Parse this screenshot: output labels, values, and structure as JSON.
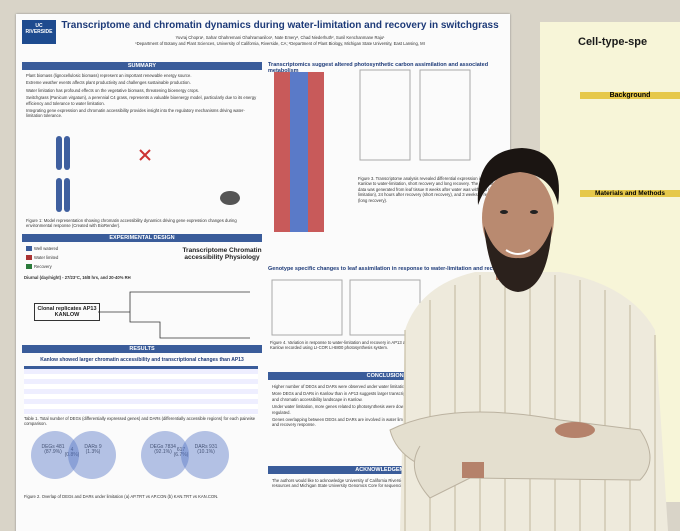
{
  "poster": {
    "logo": "UC RIVERSIDE",
    "title": "Transcriptome and chromatin dynamics during water-limitation and recovery in switchgrass",
    "authors": "Yuvraj Chopra¹, Sahar Ghahremani Ghahramaniloo¹, Nate Emery², Chad Niederhuth², Sunil Kenchanmane Raju¹",
    "affiliations": "¹Department of Botany and Plant Sciences, University of California, Riverside, CA; ²Department of Plant Biology, Michigan State University, East Lansing, MI",
    "summary": {
      "heading": "SUMMARY",
      "bullets": [
        "Plant biomass (lignocellulosic biomass) represent an important renewable energy source.",
        "Extreme weather events affects plant productivity and challenges sustainable production.",
        "Water limitation has profound effects on the vegetative biomass, threatening bioenergy crops.",
        "Switchgrass (Panicum virgatum), a perennial C4 grass, represents a valuable bioenergy model, particularly due to its energy efficiency and tolerance to water limitation.",
        "Integrating gene expression and chromatin accessibility provides insight into the regulatory mechanisms driving water-limitation tolerance."
      ]
    },
    "figure1_caption": "Figure 1: Model representation showing chromatin accessibility dynamics driving gene expression changes during environmental response (Created with BioRender).",
    "design": {
      "heading": "EXPERIMENTAL DESIGN",
      "legend": [
        "Well watered",
        "Water limited",
        "Recovery"
      ],
      "conditions": "Diurnal (day/night) - 27/23°C, 16/8 hrs, and 20-40% RH",
      "assays": "Transcriptome Chromatin accessibility Physiology",
      "plants": "Clonal replicates AP13 KANLOW"
    },
    "results": {
      "heading": "RESULTS",
      "subheading": "Kanlow showed larger chromatin accessibility and transcriptional changes than AP13",
      "table_caption": "Table 1. Total number of DEGs (differentially expressed genes) and DARs (differentially accessible regions) for each pairwise comparison.",
      "venn1": {
        "left": "DEGs 481 (87.9%)",
        "middle": "4 (0.8%)",
        "right": "DARs 9 (1.3%)"
      },
      "venn2": {
        "left": "DEGs 7834 (92.1%)",
        "middle": "617 (6.7%)",
        "right": "DARs 931 (10.1%)"
      },
      "figure2_caption": "Figure 2. Overlap of DEGs and DARs under limitation (a) AP.TRT vs AP.CON (b) KAN.TRT vs KAN.CON."
    },
    "transcriptomics": {
      "heading": "Transcriptomics suggest altered photosynthetic carbon assimilation and associated metabolism",
      "text": "Figure 3. Transcriptome analysis revealed differential expression in AP13 and Kanlow to water-limitation, short recovery and long recovery. The RNA-seq data was generated from leaf tissue 8 weeks after water was withheld (water limitation), 24 hours after recovery (short recovery), and 3 weeks of recovery (long recovery)."
    },
    "physiology": {
      "heading": "Genotype specific changes to leaf assimilation in response to water-limitation and recovery",
      "caption": "Figure 4. Variation in response to water-limitation and recovery in AP13 and Kanlow recorded using LI-COR LI-6800 photosynthesis system."
    },
    "conclusions": {
      "heading": "CONCLUSIONS",
      "bullets": [
        "Higher number of DEGs and DARs were observed under water limitation.",
        "More DEGs and DARs in Kanlow than in AP13 suggests larger transcriptional and chromatin accessibility landscape in Kanlow.",
        "Under water limitation, more genes related to photosynthesis were down-regulated.",
        "Genes overlapping between DEGs and DARs are involved in water limitation and recovery response."
      ]
    },
    "acknowledgements": {
      "heading": "ACKNOWLEDGEMENTS",
      "text": "The authors would like to acknowledge University of California Riverside for resources and Michigan State University Genomics Core for sequencing."
    }
  },
  "right_poster": {
    "title": "Cell-type-spe",
    "background": "Background",
    "methods": "Materials and Methods"
  }
}
